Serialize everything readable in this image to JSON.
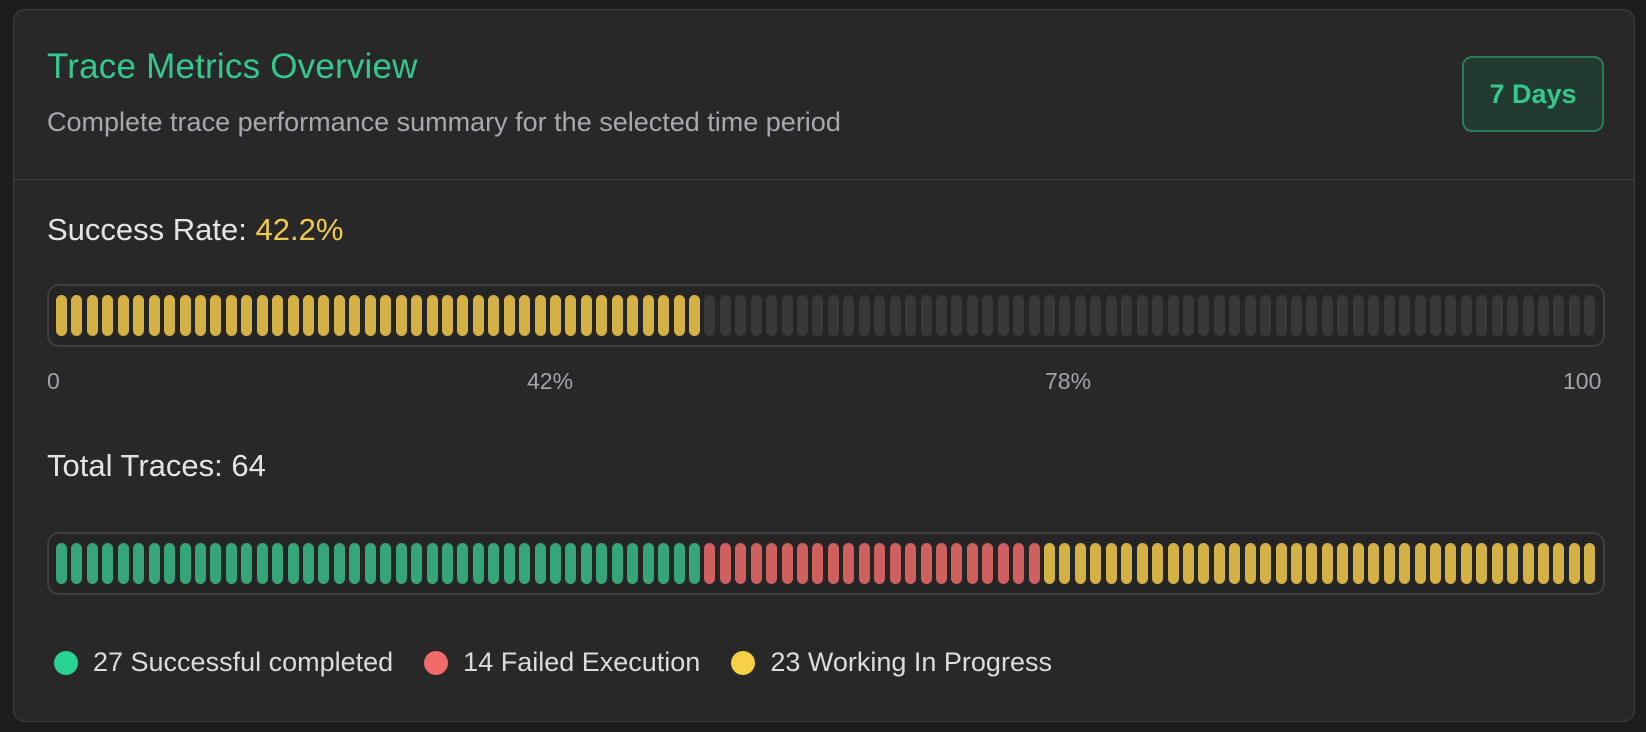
{
  "header": {
    "title": "Trace Metrics Overview",
    "subtitle": "Complete trace performance summary for the selected time period",
    "period_badge": "7 Days"
  },
  "success_rate": {
    "label": "Success Rate:",
    "value_text": "42.2%",
    "value": 42.2,
    "segments_total": 100,
    "ticks": [
      "0",
      "42%",
      "78%",
      "100"
    ]
  },
  "total_traces": {
    "label": "Total Traces:",
    "count": "64",
    "segments_total": 100
  },
  "legend": [
    {
      "count": 27,
      "text": "27 Successful completed",
      "color": "#27d391",
      "kind": "green"
    },
    {
      "count": 14,
      "text": "14 Failed Execution",
      "color": "#f26b6b",
      "kind": "red"
    },
    {
      "count": 23,
      "text": "23 Working In Progress",
      "color": "#f6d046",
      "kind": "yellow"
    }
  ],
  "colors": {
    "accent": "#34c88e",
    "rate_value": "#f2c94c",
    "success_bar": "#36a67a",
    "failed_bar": "#cf6060",
    "progress_bar": "#d4b144",
    "empty_bar": "#383838"
  }
}
